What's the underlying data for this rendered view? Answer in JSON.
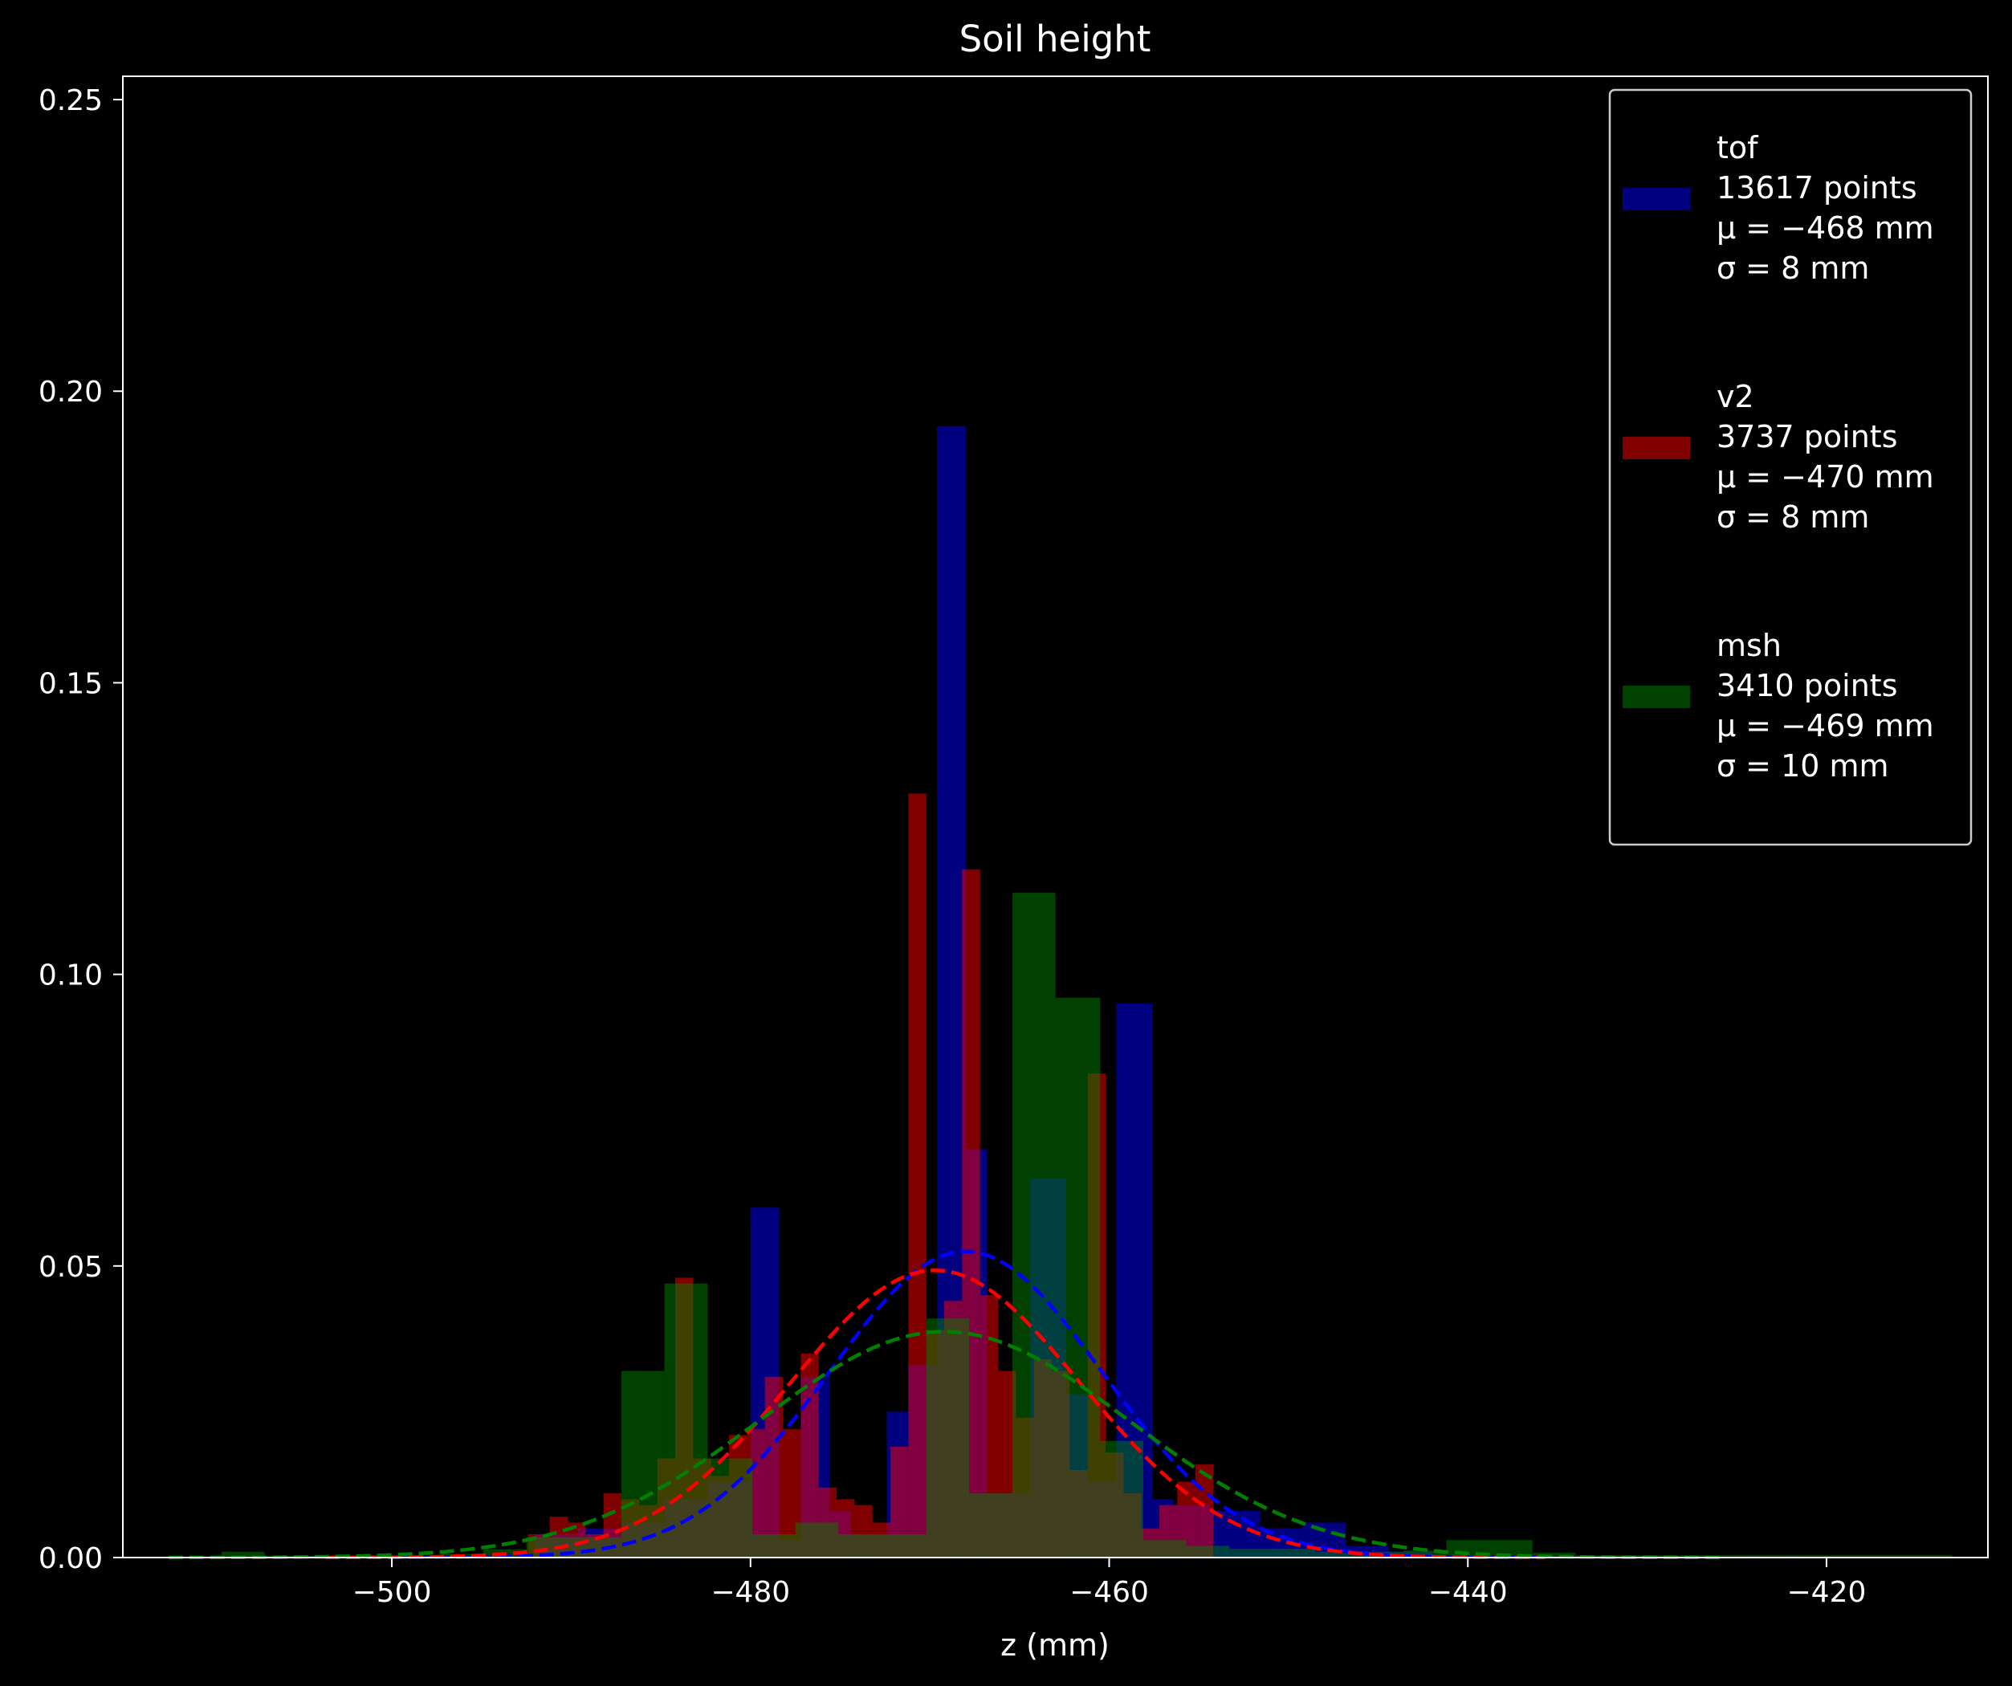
{
  "chart_data": {
    "type": "bar",
    "title": "Soil height",
    "xlabel": "z (mm)",
    "ylabel": "",
    "xlim": [
      -515,
      -411
    ],
    "ylim": [
      0,
      0.254
    ],
    "xticks": [
      -500,
      -480,
      -460,
      -440,
      -420
    ],
    "xtick_labels": [
      "−500",
      "−480",
      "−460",
      "−440",
      "−420"
    ],
    "yticks": [
      0.0,
      0.05,
      0.1,
      0.15,
      0.2,
      0.25
    ],
    "ytick_labels": [
      "0.00",
      "0.05",
      "0.10",
      "0.15",
      "0.20",
      "0.25"
    ],
    "grid": false,
    "legend_position": "top-right",
    "series": [
      {
        "name": "tof",
        "legend_lines": [
          "tof",
          "13617 points",
          "μ = −468 mm",
          "σ = 8 mm"
        ],
        "color": "#0000ff",
        "fill_alpha": 0.5,
        "mu": -468,
        "sigma": 7.6,
        "bins": [
          [
            -492,
            -489.6,
            0.004
          ],
          [
            -489.6,
            -487.2,
            0.005
          ],
          [
            -487.2,
            -484.8,
            0.006
          ],
          [
            -484.8,
            -482.4,
            0.01
          ],
          [
            -482.4,
            -480,
            0.013
          ],
          [
            -480,
            -478.4,
            0.06
          ],
          [
            -478.4,
            -477.2,
            0.003
          ],
          [
            -477.2,
            -475.6,
            0.031
          ],
          [
            -475.6,
            -474.4,
            0.008
          ],
          [
            -474.4,
            -472.4,
            0.004
          ],
          [
            -472.4,
            -471.2,
            0.025
          ],
          [
            -471.2,
            -469.6,
            0.033
          ],
          [
            -469.6,
            -468,
            0.194
          ],
          [
            -468,
            -466.8,
            0.07
          ],
          [
            -466.8,
            -465.6,
            0.011
          ],
          [
            -465.6,
            -464.4,
            0.011
          ],
          [
            -464.4,
            -462.4,
            0.065
          ],
          [
            -462.4,
            -461.2,
            0.028
          ],
          [
            -461.2,
            -459.6,
            0.013
          ],
          [
            -459.6,
            -457.6,
            0.095
          ],
          [
            -457.6,
            -456.4,
            0.01
          ],
          [
            -456.4,
            -454.4,
            0.009
          ],
          [
            -454.4,
            -451.6,
            0.008
          ],
          [
            -451.6,
            -449.2,
            0.005
          ],
          [
            -449.2,
            -446.8,
            0.006
          ],
          [
            -446.8,
            -444.4,
            0.002
          ],
          [
            -444.4,
            -442,
            0.001
          ]
        ]
      },
      {
        "name": "v2",
        "legend_lines": [
          "v2",
          "3737 points",
          "μ = −470 mm",
          "σ = 8 mm"
        ],
        "color": "#ff0000",
        "fill_alpha": 0.5,
        "mu": -469.7,
        "sigma": 8.1,
        "bins": [
          [
            -492.4,
            -491.2,
            0.004
          ],
          [
            -491.2,
            -490.2,
            0.007
          ],
          [
            -490.2,
            -489.2,
            0.006
          ],
          [
            -489.2,
            -488.2,
            0.004
          ],
          [
            -488.2,
            -487.2,
            0.011
          ],
          [
            -487.2,
            -486.2,
            0.01
          ],
          [
            -486.2,
            -485.2,
            0.009
          ],
          [
            -485.2,
            -484.2,
            0.017
          ],
          [
            -484.2,
            -483.2,
            0.048
          ],
          [
            -483.2,
            -482.2,
            0.017
          ],
          [
            -482.2,
            -481.2,
            0.014
          ],
          [
            -481.2,
            -480.2,
            0.021
          ],
          [
            -480.2,
            -479.2,
            0.022
          ],
          [
            -479.2,
            -478.2,
            0.031
          ],
          [
            -478.2,
            -477.2,
            0.022
          ],
          [
            -477.2,
            -476.2,
            0.035
          ],
          [
            -476.2,
            -475.2,
            0.012
          ],
          [
            -475.2,
            -474.2,
            0.01
          ],
          [
            -474.2,
            -473.2,
            0.009
          ],
          [
            -473.2,
            -472.2,
            0.006
          ],
          [
            -472.2,
            -471.2,
            0.019
          ],
          [
            -471.2,
            -470.2,
            0.131
          ],
          [
            -470.2,
            -469.2,
            0.039
          ],
          [
            -469.2,
            -468.2,
            0.044
          ],
          [
            -468.2,
            -467.2,
            0.118
          ],
          [
            -467.2,
            -466.2,
            0.045
          ],
          [
            -466.2,
            -465.2,
            0.032
          ],
          [
            -465.2,
            -464.2,
            0.024
          ],
          [
            -464.2,
            -463.2,
            0.034
          ],
          [
            -463.2,
            -462.2,
            0.032
          ],
          [
            -462.2,
            -461.2,
            0.015
          ],
          [
            -461.2,
            -460.2,
            0.083
          ],
          [
            -460.2,
            -459.2,
            0.018
          ],
          [
            -459.2,
            -458.2,
            0.011
          ],
          [
            -458.2,
            -457.2,
            0.005
          ],
          [
            -457.2,
            -456.2,
            0.009
          ],
          [
            -456.2,
            -455.2,
            0.013
          ],
          [
            -455.2,
            -454.2,
            0.016
          ]
        ]
      },
      {
        "name": "msh",
        "legend_lines": [
          "msh",
          "3410 points",
          "μ = −469 mm",
          "σ = 10 mm"
        ],
        "color": "#008000",
        "fill_alpha": 0.5,
        "mu": -469.2,
        "sigma": 10.3,
        "bins": [
          [
            -509.5,
            -507.1,
            0.001
          ],
          [
            -507.1,
            -504.6,
            0.0003
          ],
          [
            -504.6,
            -502.2,
            0.0003
          ],
          [
            -502.2,
            -499.8,
            0.0003
          ],
          [
            -499.8,
            -497.3,
            0.0003
          ],
          [
            -497.3,
            -494.9,
            0.0006
          ],
          [
            -494.9,
            -492.5,
            0.0014
          ],
          [
            -492.5,
            -489.6,
            0.0035
          ],
          [
            -489.6,
            -487.2,
            0.0035
          ],
          [
            -487.2,
            -484.8,
            0.032
          ],
          [
            -484.8,
            -482.4,
            0.047
          ],
          [
            -482.4,
            -479.9,
            0.017
          ],
          [
            -479.9,
            -477.5,
            0.004
          ],
          [
            -477.5,
            -475.1,
            0.006
          ],
          [
            -475.1,
            -472.7,
            0.004
          ],
          [
            -472.7,
            -470.2,
            0.004
          ],
          [
            -470.2,
            -467.8,
            0.041
          ],
          [
            -467.8,
            -465.4,
            0.011
          ],
          [
            -465.4,
            -463,
            0.114
          ],
          [
            -463,
            -460.5,
            0.096
          ],
          [
            -460.5,
            -458.1,
            0.02
          ],
          [
            -458.1,
            -455.7,
            0.003
          ],
          [
            -455.7,
            -453.3,
            0.002
          ],
          [
            -453.3,
            -450.9,
            0.0015
          ],
          [
            -450.9,
            -448.5,
            0.0015
          ],
          [
            -448.5,
            -446,
            0.001
          ],
          [
            -446,
            -443.6,
            0.001
          ],
          [
            -443.6,
            -441.2,
            0.0012
          ],
          [
            -441.2,
            -438.8,
            0.003
          ],
          [
            -438.8,
            -436.4,
            0.003
          ],
          [
            -436.4,
            -434,
            0.0008
          ],
          [
            -434,
            -431.6,
            0.0004
          ],
          [
            -431.6,
            -429.2,
            0.0004
          ],
          [
            -429.2,
            -426.8,
            0.0004
          ],
          [
            -426.8,
            -424.4,
            0.0004
          ],
          [
            -424.4,
            -422,
            0.0004
          ],
          [
            -422,
            -419.6,
            0.0004
          ],
          [
            -419.6,
            -417.2,
            0.0004
          ],
          [
            -417.2,
            -414.8,
            0.0004
          ],
          [
            -414.8,
            -413,
            0.0004
          ]
        ]
      }
    ]
  }
}
